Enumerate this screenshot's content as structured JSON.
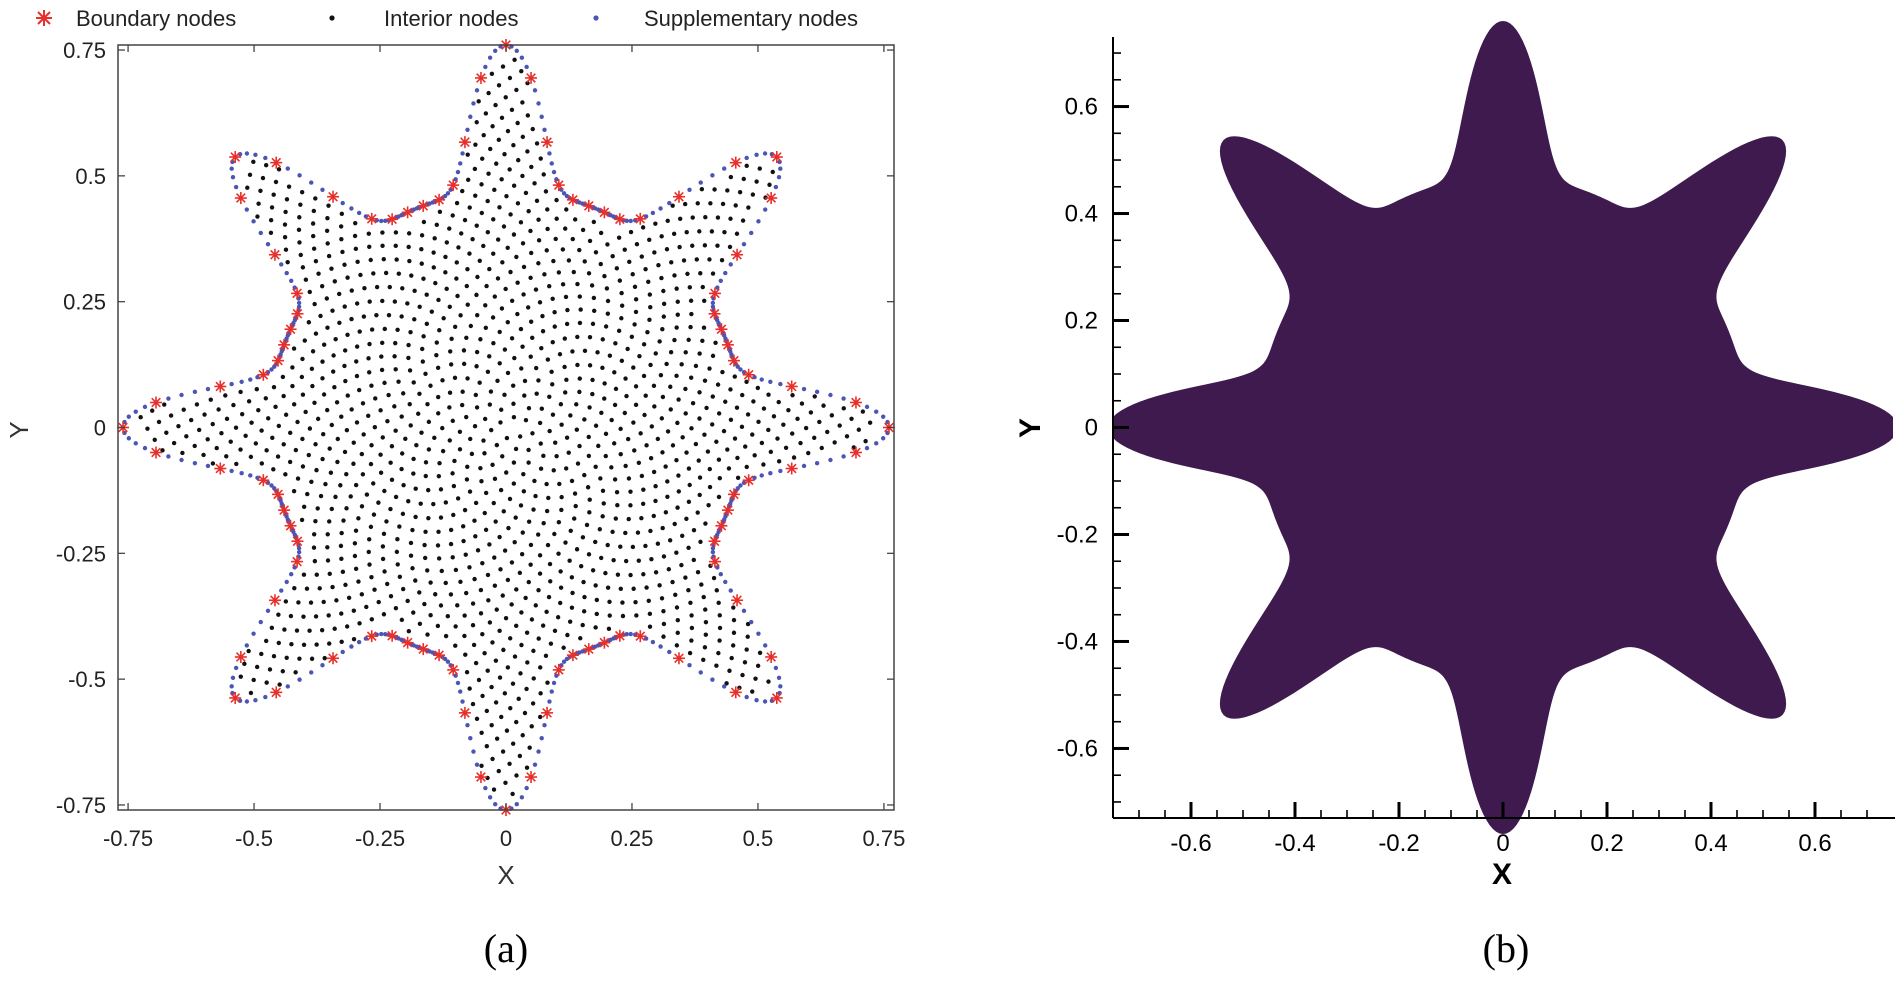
{
  "chart_data": [
    {
      "type": "scatter",
      "panel": "(a)",
      "xlabel": "X",
      "ylabel": "Y",
      "xlim": [
        -0.77,
        0.77
      ],
      "ylim": [
        -0.76,
        0.76
      ],
      "xticks": [
        -0.75,
        -0.5,
        -0.25,
        0,
        0.25,
        0.5,
        0.75
      ],
      "xtick_labels": [
        "-0.75",
        "-0.5",
        "-0.25",
        "0",
        "0.25",
        "0.5",
        "0.75"
      ],
      "yticks": [
        -0.75,
        -0.5,
        -0.25,
        0,
        0.25,
        0.5,
        0.75
      ],
      "ytick_labels": [
        "-0.75",
        "-0.5",
        "-0.25",
        "0",
        "0.25",
        "0.5",
        "0.75"
      ],
      "legend_position": "top",
      "shape": {
        "description": "eight-lobed domain",
        "lobes": 8,
        "lobe_angles_deg": [
          0,
          45,
          90,
          135,
          180,
          225,
          270,
          315
        ],
        "core_radius": 0.47,
        "lobe_tip_radius": 0.76
      },
      "series": [
        {
          "name": "Boundary nodes",
          "marker": "asterisk",
          "color": "#e8302a",
          "count": 88
        },
        {
          "name": "Interior nodes",
          "marker": "dot",
          "color": "#111111",
          "count": 1100
        },
        {
          "name": "Supplementary nodes",
          "marker": "dot",
          "color": "#4b55b5",
          "count": 440
        }
      ]
    },
    {
      "type": "area",
      "panel": "(b)",
      "xlabel": "X",
      "ylabel": "Y",
      "xlim": [
        -0.75,
        0.75
      ],
      "ylim": [
        -0.73,
        0.73
      ],
      "xticks": [
        -0.6,
        -0.4,
        -0.2,
        0,
        0.2,
        0.4,
        0.6
      ],
      "xtick_labels": [
        "-0.6",
        "-0.4",
        "-0.2",
        "0",
        "0.2",
        "0.4",
        "0.6"
      ],
      "yticks": [
        -0.6,
        -0.4,
        -0.2,
        0,
        0.2,
        0.4,
        0.6
      ],
      "ytick_labels": [
        "-0.6",
        "-0.4",
        "-0.2",
        "0",
        "0.2",
        "0.4",
        "0.6"
      ],
      "shape": {
        "description": "filled eight-lobed domain",
        "lobes": 8,
        "core_radius": 0.47,
        "lobe_tip_radius": 0.76
      },
      "fill_color": "#3f1a4f"
    }
  ],
  "captions": {
    "a": "(a)",
    "b": "(b)"
  }
}
